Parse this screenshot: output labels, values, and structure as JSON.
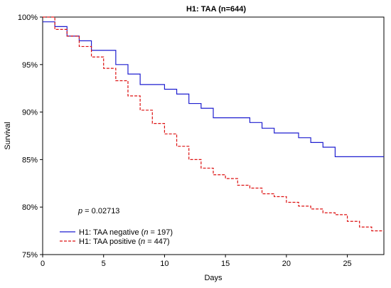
{
  "chart_data": {
    "type": "line",
    "title": "H1: TAA (n=644)",
    "xlabel": "Days",
    "ylabel": "Survival",
    "xlim": [
      0,
      28
    ],
    "ylim": [
      75,
      100
    ],
    "x_ticks": [
      0,
      5,
      10,
      15,
      20,
      25
    ],
    "x_tick_labels": [
      "0",
      "5",
      "10",
      "15",
      "20",
      "25"
    ],
    "y_ticks": [
      75,
      80,
      85,
      90,
      95,
      100
    ],
    "y_tick_labels": [
      "75%",
      "80%",
      "85%",
      "90%",
      "95%",
      "100%"
    ],
    "grid": false,
    "legend_position": "bottom-left",
    "annotation": {
      "p_symbol": "p",
      "p_rest": " = 0.02713"
    },
    "series": [
      {
        "name": "H1: TAA negative (n = 197)",
        "legend_prefix": "H1: TAA negative (",
        "legend_italic": "n",
        "legend_suffix": " = 197)",
        "color": "#1f1fd0",
        "style": "solid",
        "x": [
          0,
          1,
          2,
          3,
          4,
          6,
          7,
          8,
          10,
          11,
          12,
          13,
          14,
          17,
          18,
          19,
          21,
          22,
          23,
          24,
          28
        ],
        "y": [
          99.5,
          99.0,
          98.0,
          97.5,
          96.5,
          95.0,
          94.0,
          92.9,
          92.4,
          91.9,
          90.9,
          90.4,
          89.4,
          88.9,
          88.3,
          87.8,
          87.3,
          86.8,
          86.3,
          85.3,
          85.3
        ]
      },
      {
        "name": "H1: TAA positive (n = 447)",
        "legend_prefix": "H1: TAA positive (",
        "legend_italic": "n",
        "legend_suffix": " = 447)",
        "color": "#dd1111",
        "style": "dashed",
        "x": [
          0,
          1,
          2,
          3,
          4,
          5,
          6,
          7,
          8,
          9,
          10,
          11,
          12,
          13,
          14,
          15,
          16,
          17,
          18,
          19,
          20,
          21,
          22,
          23,
          24,
          25,
          26,
          27,
          28
        ],
        "y": [
          100,
          98.7,
          98.0,
          96.9,
          95.8,
          94.6,
          93.3,
          91.7,
          90.2,
          88.8,
          87.7,
          86.4,
          85.0,
          84.1,
          83.4,
          83.0,
          82.3,
          82.0,
          81.4,
          81.1,
          80.5,
          80.1,
          79.8,
          79.4,
          79.2,
          78.5,
          77.9,
          77.5,
          77.5
        ]
      }
    ]
  }
}
